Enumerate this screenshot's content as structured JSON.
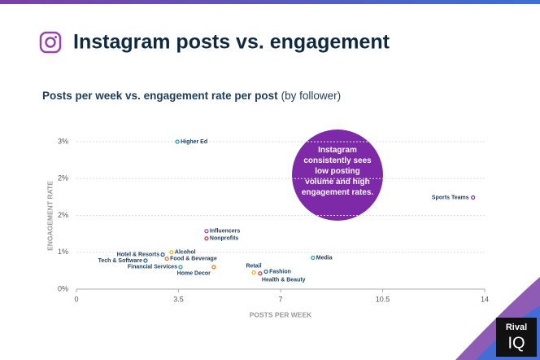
{
  "title": "Instagram posts vs. engagement",
  "logo": {
    "line1": "Rival",
    "line2": "IQ"
  },
  "chart_data": {
    "type": "scatter",
    "title": "Posts per week vs. engagement rate per post",
    "subtitle": "(by follower)",
    "xlabel": "POSTS PER WEEK",
    "ylabel": "ENGAGEMENT RATE",
    "annotation": "Instagram consistently sees low posting volume and high engagement rates.",
    "xlim": [
      0,
      14
    ],
    "xticks": [
      0,
      3.5,
      7,
      10.5,
      14
    ],
    "ylim": [
      0,
      3.2
    ],
    "yticks": [
      {
        "value": 0,
        "label": "0%"
      },
      {
        "value": 0.8,
        "label": "1%"
      },
      {
        "value": 1.6,
        "label": "2%"
      },
      {
        "value": 2.4,
        "label": "2%"
      },
      {
        "value": 3.2,
        "label": "3%"
      }
    ],
    "grid": true,
    "series": [
      {
        "name": "Higher Ed",
        "color": "#2a9bb5",
        "x": [
          3.46
        ],
        "values": [
          3.2
        ]
      },
      {
        "name": "Sports Teams",
        "color": "#7b3fa8",
        "x": [
          13.6
        ],
        "values": [
          1.99
        ]
      },
      {
        "name": "Influencers",
        "color": "#a24aa8",
        "x": [
          4.46
        ],
        "values": [
          1.26
        ]
      },
      {
        "name": "Nonprofits",
        "color": "#d63a3a",
        "x": [
          4.46
        ],
        "values": [
          1.1
        ]
      },
      {
        "name": "Alcohol",
        "color": "#e8b81e",
        "x": [
          3.26
        ],
        "values": [
          0.8
        ]
      },
      {
        "name": "Hotel & Resorts",
        "color": "#2d5f9a",
        "x": [
          2.96
        ],
        "values": [
          0.75
        ]
      },
      {
        "name": "Food & Beverage",
        "color": "#e87a2a",
        "x": [
          3.1
        ],
        "values": [
          0.66
        ]
      },
      {
        "name": "Tech & Software",
        "color": "#2d6ea0",
        "x": [
          2.37
        ],
        "values": [
          0.62
        ]
      },
      {
        "name": "Financial Services",
        "color": "#2a9bb5",
        "x": [
          3.57
        ],
        "values": [
          0.48
        ]
      },
      {
        "name": "Home Decor",
        "color": "#e87a2a",
        "x": [
          4.71
        ],
        "values": [
          0.48
        ]
      },
      {
        "name": "Media",
        "color": "#2aa5a0",
        "x": [
          8.11
        ],
        "values": [
          0.68
        ]
      },
      {
        "name": "Retail",
        "color": "#e8b81e",
        "x": [
          6.08
        ],
        "values": [
          0.36
        ]
      },
      {
        "name": "Fashion",
        "color": "#2d6ea0",
        "x": [
          6.5
        ],
        "values": [
          0.38
        ]
      },
      {
        "name": "Health & Beauty",
        "color": "#d63a3a",
        "x": [
          6.3
        ],
        "values": [
          0.34
        ]
      }
    ]
  }
}
